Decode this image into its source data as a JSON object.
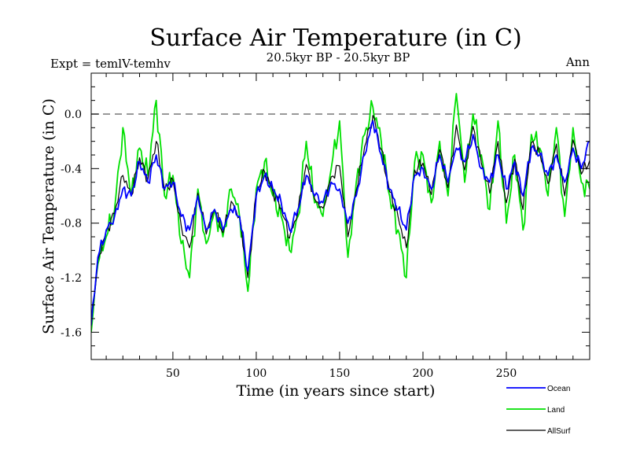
{
  "chart_data": {
    "type": "line",
    "title": "Surface Air Temperature (in C)",
    "subtitle": "20.5kyr BP - 20.5kyr BP",
    "left_label": "Expt = temlV-temhv",
    "right_label": "Ann",
    "xlabel": "Time (in years since start)",
    "ylabel": "Surface Air Temperature (in C)",
    "xlim": [
      1,
      300
    ],
    "ylim": [
      -1.8,
      0.3
    ],
    "x_ticks": [
      50,
      100,
      150,
      200,
      250
    ],
    "y_ticks": [
      0.0,
      -0.4,
      -0.8,
      -1.2,
      -1.6
    ],
    "y_tick_labels": [
      "0.0",
      "-0.4",
      "-0.8",
      "-1.2",
      "-1.6"
    ],
    "reference_line": 0.0,
    "legend_position": "bottom-right, outside plot",
    "series": [
      {
        "name": "Ocean",
        "color": "#0000ff",
        "x": [
          1,
          5,
          10,
          15,
          20,
          25,
          30,
          35,
          40,
          45,
          50,
          55,
          60,
          65,
          70,
          75,
          80,
          85,
          90,
          95,
          100,
          105,
          110,
          115,
          120,
          125,
          130,
          135,
          140,
          145,
          150,
          155,
          160,
          165,
          170,
          175,
          180,
          185,
          190,
          195,
          200,
          205,
          210,
          215,
          220,
          225,
          230,
          235,
          240,
          245,
          250,
          255,
          260,
          265,
          270,
          275,
          280,
          285,
          290,
          295,
          300
        ],
        "values": [
          -1.55,
          -1.05,
          -0.85,
          -0.75,
          -0.55,
          -0.6,
          -0.35,
          -0.5,
          -0.3,
          -0.55,
          -0.5,
          -0.75,
          -0.85,
          -0.6,
          -0.85,
          -0.7,
          -0.85,
          -0.7,
          -0.75,
          -1.15,
          -0.6,
          -0.45,
          -0.55,
          -0.65,
          -0.85,
          -0.7,
          -0.45,
          -0.6,
          -0.65,
          -0.5,
          -0.55,
          -0.8,
          -0.6,
          -0.3,
          -0.05,
          -0.3,
          -0.55,
          -0.7,
          -0.85,
          -0.45,
          -0.4,
          -0.55,
          -0.3,
          -0.5,
          -0.25,
          -0.35,
          -0.15,
          -0.4,
          -0.5,
          -0.3,
          -0.55,
          -0.35,
          -0.6,
          -0.25,
          -0.3,
          -0.45,
          -0.3,
          -0.5,
          -0.25,
          -0.4,
          -0.2
        ]
      },
      {
        "name": "Land",
        "color": "#00e000",
        "x": [
          1,
          5,
          10,
          15,
          20,
          25,
          30,
          35,
          40,
          45,
          50,
          55,
          60,
          65,
          70,
          75,
          80,
          85,
          90,
          95,
          100,
          105,
          110,
          115,
          120,
          125,
          130,
          135,
          140,
          145,
          150,
          155,
          160,
          165,
          170,
          175,
          180,
          185,
          190,
          195,
          200,
          205,
          210,
          215,
          220,
          225,
          230,
          235,
          240,
          245,
          250,
          255,
          260,
          265,
          270,
          275,
          280,
          285,
          290,
          295,
          300
        ],
        "values": [
          -1.6,
          -1.1,
          -0.9,
          -0.7,
          -0.1,
          -0.6,
          -0.25,
          -0.45,
          0.1,
          -0.6,
          -0.45,
          -0.95,
          -1.2,
          -0.55,
          -0.95,
          -0.7,
          -0.9,
          -0.55,
          -0.75,
          -1.3,
          -0.55,
          -0.35,
          -0.6,
          -0.75,
          -1.0,
          -0.75,
          -0.2,
          -0.65,
          -0.75,
          -0.4,
          -0.05,
          -1.05,
          -0.5,
          -0.15,
          0.05,
          -0.2,
          -0.6,
          -0.85,
          -1.2,
          -0.35,
          -0.3,
          -0.65,
          -0.2,
          -0.6,
          0.15,
          -0.5,
          0.0,
          -0.3,
          -0.7,
          -0.05,
          -0.8,
          -0.3,
          -0.85,
          -0.15,
          -0.25,
          -0.6,
          -0.1,
          -0.75,
          -0.1,
          -0.5,
          -0.55
        ]
      },
      {
        "name": "AllSurf",
        "color": "#000000",
        "x": [
          1,
          5,
          10,
          15,
          20,
          25,
          30,
          35,
          40,
          45,
          50,
          55,
          60,
          65,
          70,
          75,
          80,
          85,
          90,
          95,
          100,
          105,
          110,
          115,
          120,
          125,
          130,
          135,
          140,
          145,
          150,
          155,
          160,
          165,
          170,
          175,
          180,
          185,
          190,
          195,
          200,
          205,
          210,
          215,
          220,
          225,
          230,
          235,
          240,
          245,
          250,
          255,
          260,
          265,
          270,
          275,
          280,
          285,
          290,
          295,
          300
        ],
        "values": [
          -1.55,
          -1.07,
          -0.86,
          -0.73,
          -0.45,
          -0.6,
          -0.32,
          -0.48,
          -0.2,
          -0.56,
          -0.48,
          -0.82,
          -0.98,
          -0.58,
          -0.88,
          -0.7,
          -0.87,
          -0.64,
          -0.75,
          -1.2,
          -0.58,
          -0.42,
          -0.57,
          -0.69,
          -0.91,
          -0.72,
          -0.37,
          -0.62,
          -0.69,
          -0.46,
          -0.38,
          -0.9,
          -0.56,
          -0.24,
          -0.01,
          -0.26,
          -0.57,
          -0.75,
          -0.98,
          -0.41,
          -0.36,
          -0.59,
          -0.26,
          -0.54,
          -0.08,
          -0.41,
          -0.09,
          -0.36,
          -0.58,
          -0.2,
          -0.65,
          -0.33,
          -0.7,
          -0.21,
          -0.28,
          -0.51,
          -0.22,
          -0.6,
          -0.19,
          -0.44,
          -0.34
        ]
      }
    ]
  }
}
